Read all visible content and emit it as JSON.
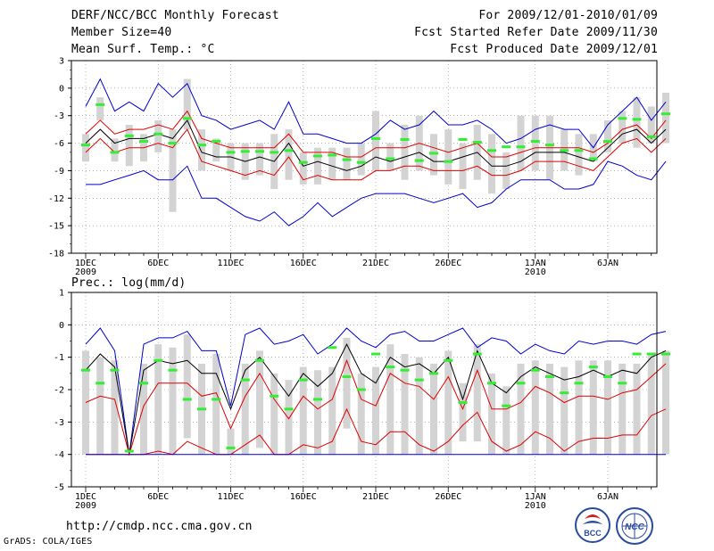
{
  "header": {
    "title": "DERF/NCC/BCC Monthly Forecast",
    "member_size": "Member Size=40",
    "variable": "Mean Surf. Temp.: °C",
    "period": "For 2009/12/01-2010/01/09",
    "started": "Fcst Started Refer Date 2009/11/30",
    "produced": "Fcst Produced Date 2009/12/01"
  },
  "footer": {
    "url": "http://cmdp.ncc.cma.gov.cn",
    "credit": "GrADS: COLA/IGES",
    "logo_left": "BCC",
    "logo_right": "NCC"
  },
  "colors": {
    "mean": "#000000",
    "spread": "#e00000",
    "extreme": "#0000cc",
    "box": "#d3d3d3",
    "median": "#33ee33",
    "grid": "#888888"
  },
  "chart_data": [
    {
      "type": "line",
      "title": "Mean Surf. Temp.: °C",
      "ylim": [
        -18,
        3
      ],
      "yticks": [
        3,
        0,
        -3,
        -6,
        -9,
        -12,
        -15,
        -18
      ],
      "xlim": [
        0,
        39.5
      ],
      "xticks": [
        {
          "day": 0,
          "label": "1DEC",
          "sub": "2009"
        },
        {
          "day": 5,
          "label": "6DEC",
          "sub": ""
        },
        {
          "day": 10,
          "label": "11DEC",
          "sub": ""
        },
        {
          "day": 15,
          "label": "16DEC",
          "sub": ""
        },
        {
          "day": 20,
          "label": "21DEC",
          "sub": ""
        },
        {
          "day": 25,
          "label": "26DEC",
          "sub": ""
        },
        {
          "day": 31,
          "label": "1JAN",
          "sub": "2010"
        },
        {
          "day": 36,
          "label": "6JAN",
          "sub": ""
        }
      ],
      "series": [
        {
          "name": "max",
          "color": "#0000cc",
          "values": [
            -2,
            1,
            -2.5,
            -1.5,
            -2.5,
            0.5,
            -1,
            0.5,
            -3,
            -3.5,
            -4.5,
            -4,
            -3.5,
            -4.5,
            -1.5,
            -5,
            -5,
            -5.5,
            -6,
            -6,
            -5,
            -3.5,
            -4.5,
            -4,
            -2.5,
            -4,
            -4,
            -3.5,
            -4.5,
            -6,
            -5.5,
            -4.5,
            -4,
            -4.5,
            -4.5,
            -6.5,
            -4,
            -2.5,
            -1,
            -3.5,
            -1.5
          ]
        },
        {
          "name": "upper",
          "color": "#e00000",
          "values": [
            -5,
            -3.5,
            -5,
            -4.5,
            -4.5,
            -4,
            -4.5,
            -2.5,
            -5.5,
            -6,
            -6.5,
            -6.5,
            -6.5,
            -6.5,
            -5,
            -7,
            -7,
            -7,
            -7.5,
            -7.5,
            -6.5,
            -6.5,
            -6.5,
            -6,
            -6.5,
            -7,
            -6.5,
            -6,
            -7.5,
            -7.5,
            -7,
            -6.5,
            -6.5,
            -6.5,
            -6.5,
            -7,
            -6,
            -4.5,
            -4,
            -5.5,
            -3.5
          ]
        },
        {
          "name": "mean",
          "color": "#000000",
          "values": [
            -6,
            -4.5,
            -6,
            -5.5,
            -5.5,
            -5,
            -5.5,
            -3.5,
            -7,
            -7.5,
            -7.5,
            -8,
            -7.5,
            -8,
            -6,
            -8.5,
            -8,
            -8.5,
            -9,
            -8.5,
            -7.5,
            -8,
            -7.5,
            -7,
            -8,
            -8,
            -7.5,
            -7,
            -8.5,
            -8.5,
            -8,
            -7,
            -7,
            -7,
            -7.5,
            -8,
            -6.5,
            -5,
            -4.5,
            -6,
            -4.5
          ]
        },
        {
          "name": "lower",
          "color": "#e00000",
          "values": [
            -7,
            -5.5,
            -7,
            -6.5,
            -6.5,
            -6,
            -6.5,
            -4.5,
            -8,
            -8.5,
            -9,
            -9.5,
            -9,
            -9.5,
            -7.5,
            -10,
            -9.5,
            -10,
            -10,
            -10,
            -9,
            -9,
            -8.5,
            -8.5,
            -9,
            -9,
            -9,
            -8.5,
            -9.5,
            -9.5,
            -9,
            -8,
            -8,
            -8,
            -8.5,
            -9,
            -7.5,
            -6,
            -5.5,
            -7,
            -5.5
          ]
        },
        {
          "name": "min",
          "color": "#0000cc",
          "values": [
            -10.5,
            -10.5,
            -10,
            -9.5,
            -9,
            -10,
            -10,
            -8.5,
            -12,
            -12,
            -13,
            -14,
            -14.5,
            -13.5,
            -15,
            -14,
            -12.5,
            -14,
            -13,
            -12,
            -11.5,
            -11.5,
            -11.5,
            -12,
            -12.5,
            -12,
            -11.5,
            -13,
            -12.5,
            -11,
            -10,
            -10,
            -10,
            -11,
            -11,
            -10.5,
            -8,
            -8.5,
            -9.5,
            -10,
            -8
          ]
        }
      ],
      "boxes": [
        [
          -8,
          -5
        ],
        [
          -3.5,
          -1
        ],
        [
          -8,
          -5.5
        ],
        [
          -8.5,
          -4
        ],
        [
          -8,
          -5
        ],
        [
          -7,
          -3.5
        ],
        [
          -13.5,
          -4.5
        ],
        [
          -4.5,
          1
        ],
        [
          -9,
          -4.5
        ],
        [
          -8,
          -5.5
        ],
        [
          -9,
          -6
        ],
        [
          -10,
          -6
        ],
        [
          -9.5,
          -6
        ],
        [
          -11,
          -5
        ],
        [
          -10,
          -4.5
        ],
        [
          -10.5,
          -7
        ],
        [
          -10.5,
          -6.5
        ],
        [
          -10,
          -6.5
        ],
        [
          -10,
          -6.5
        ],
        [
          -9.5,
          -6
        ],
        [
          -9,
          -2.5
        ],
        [
          -9,
          -6
        ],
        [
          -10,
          -4
        ],
        [
          -9,
          -3
        ],
        [
          -9.5,
          -5
        ],
        [
          -10.5,
          -4.5
        ],
        [
          -11,
          -6
        ],
        [
          -10,
          -4
        ],
        [
          -11.5,
          -5
        ],
        [
          -11,
          -7
        ],
        [
          -9,
          -3
        ],
        [
          -9,
          -3
        ],
        [
          -10,
          -3
        ],
        [
          -9,
          -4.5
        ],
        [
          -9.5,
          -5
        ],
        [
          -8,
          -5
        ],
        [
          -7,
          -3.5
        ],
        [
          -6,
          -2.5
        ],
        [
          -6.5,
          -1
        ],
        [
          -6,
          -2
        ],
        [
          -6,
          -0.5
        ]
      ],
      "medians": [
        -6.2,
        -1.8,
        -7,
        -5.2,
        -5.8,
        -5,
        -6,
        -3.3,
        -6.2,
        -5.8,
        -7,
        -6.9,
        -6.9,
        -7,
        -6.8,
        -8.1,
        -7.4,
        -7.3,
        -7.8,
        -8.1,
        -5.5,
        -7.7,
        -5.6,
        -7.9,
        -7.1,
        -8,
        -5.6,
        -5.9,
        -6.8,
        -6.4,
        -6.4,
        -5.8,
        -6.2,
        -6.8,
        -6.8,
        -7.7,
        -5.8,
        -3.3,
        -3.4,
        -5.3,
        -2.8
      ]
    },
    {
      "type": "line",
      "title": "Prec.: log(mm/d)",
      "ylim": [
        -5,
        1
      ],
      "yticks": [
        1,
        0,
        -1,
        -2,
        -3,
        -4,
        -5
      ],
      "xlim": [
        0,
        39.5
      ],
      "xticks": [
        {
          "day": 0,
          "label": "1DEC",
          "sub": "2009"
        },
        {
          "day": 5,
          "label": "6DEC",
          "sub": ""
        },
        {
          "day": 10,
          "label": "11DEC",
          "sub": ""
        },
        {
          "day": 15,
          "label": "16DEC",
          "sub": ""
        },
        {
          "day": 20,
          "label": "21DEC",
          "sub": ""
        },
        {
          "day": 25,
          "label": "26DEC",
          "sub": ""
        },
        {
          "day": 31,
          "label": "1JAN",
          "sub": "2010"
        },
        {
          "day": 36,
          "label": "6JAN",
          "sub": ""
        }
      ],
      "series": [
        {
          "name": "max",
          "color": "#0000cc",
          "values": [
            -0.6,
            -0.1,
            -0.8,
            -4,
            -0.6,
            -0.4,
            -0.4,
            -0.2,
            -0.8,
            -0.8,
            -2.5,
            -0.3,
            -0.1,
            -0.6,
            -0.5,
            -0.3,
            -0.9,
            -0.6,
            -0.1,
            -0.5,
            -0.7,
            -0.3,
            -0.2,
            -0.5,
            -0.5,
            -0.3,
            -0.1,
            -0.7,
            -0.4,
            -0.5,
            -0.9,
            -0.6,
            -0.8,
            -0.9,
            -0.5,
            -0.6,
            -0.5,
            -0.5,
            -0.6,
            -0.3,
            -0.2
          ]
        },
        {
          "name": "mean",
          "color": "#000000",
          "values": [
            -1.4,
            -0.9,
            -1.3,
            -4,
            -1.4,
            -1.1,
            -1.2,
            -1.1,
            -1.5,
            -1.5,
            -2.6,
            -1.4,
            -1,
            -1.6,
            -2.2,
            -1.5,
            -1.9,
            -1.5,
            -0.6,
            -1.5,
            -1.8,
            -1,
            -1.3,
            -1.2,
            -1.5,
            -1,
            -2.3,
            -0.8,
            -1.8,
            -2.1,
            -1.6,
            -1.3,
            -1.5,
            -1.7,
            -1.6,
            -1.4,
            -1.6,
            -1.4,
            -1.5,
            -1,
            -0.8
          ]
        },
        {
          "name": "upper",
          "color": "#e00000",
          "values": [
            -2.4,
            -2.2,
            -2.3,
            -4,
            -2.5,
            -1.8,
            -1.8,
            -1.8,
            -2.2,
            -2.1,
            -3.2,
            -2.2,
            -1.5,
            -2.3,
            -2.9,
            -2.2,
            -2.6,
            -2.3,
            -1.1,
            -2.3,
            -2.5,
            -1.5,
            -1.8,
            -1.9,
            -2.3,
            -1.6,
            -2.6,
            -1.4,
            -2.6,
            -2.6,
            -2.4,
            -1.9,
            -2.1,
            -2.4,
            -2.2,
            -2.2,
            -2.3,
            -2.1,
            -2,
            -1.6,
            -1.2
          ]
        },
        {
          "name": "lower",
          "color": "#e00000",
          "values": [
            -4,
            -4,
            -4,
            -4,
            -4,
            -3.9,
            -4,
            -3.6,
            -3.8,
            -4,
            -4,
            -3.7,
            -3.4,
            -4,
            -4,
            -3.7,
            -3.8,
            -3.6,
            -2.6,
            -3.6,
            -3.7,
            -3.3,
            -3.3,
            -3.7,
            -3.9,
            -3.6,
            -3.1,
            -2.7,
            -3.6,
            -3.9,
            -3.7,
            -3.3,
            -3.5,
            -3.9,
            -3.6,
            -3.5,
            -3.5,
            -3.4,
            -3.4,
            -2.8,
            -2.6
          ]
        },
        {
          "name": "min",
          "color": "#0000cc",
          "values": [
            -4,
            -4,
            -4,
            -4,
            -4,
            -4,
            -4,
            -4,
            -4,
            -4,
            -4,
            -4,
            -4,
            -4,
            -4,
            -4,
            -4,
            -4,
            -4,
            -4,
            -4,
            -4,
            -4,
            -4,
            -4,
            -4,
            -4,
            -4,
            -4,
            -4,
            -4,
            -4,
            -4,
            -4,
            -4,
            -4,
            -4,
            -4,
            -4,
            -4,
            -4
          ]
        }
      ],
      "boxes": [
        [
          -4,
          -0.8
        ],
        [
          -4,
          -1
        ],
        [
          -4,
          -1.1
        ],
        [
          -4,
          -4
        ],
        [
          -4,
          -1.2
        ],
        [
          -4,
          -0.6
        ],
        [
          -4,
          -0.7
        ],
        [
          -3.5,
          -0.3
        ],
        [
          -4,
          -1.2
        ],
        [
          -4,
          -0.9
        ],
        [
          -4,
          -3.2
        ],
        [
          -4,
          -1.2
        ],
        [
          -3.8,
          -0.8
        ],
        [
          -4,
          -1.5
        ],
        [
          -4,
          -1.7
        ],
        [
          -4,
          -1.3
        ],
        [
          -4,
          -1.4
        ],
        [
          -4,
          -1.3
        ],
        [
          -3.2,
          -0.4
        ],
        [
          -4,
          -1.5
        ],
        [
          -4,
          -1.3
        ],
        [
          -4,
          -0.6
        ],
        [
          -4,
          -0.9
        ],
        [
          -4,
          -1
        ],
        [
          -4,
          -1.2
        ],
        [
          -4,
          -0.8
        ],
        [
          -3.6,
          -1.8
        ],
        [
          -3.6,
          -0.6
        ],
        [
          -4,
          -1.5
        ],
        [
          -4,
          -1.9
        ],
        [
          -4,
          -1.2
        ],
        [
          -4,
          -1.1
        ],
        [
          -4,
          -1.2
        ],
        [
          -4,
          -1.3
        ],
        [
          -4,
          -1.1
        ],
        [
          -4,
          -1.1
        ],
        [
          -4,
          -1.1
        ],
        [
          -4,
          -1.2
        ],
        [
          -4,
          -1.2
        ],
        [
          -4,
          -0.9
        ],
        [
          -4,
          -0.8
        ]
      ],
      "medians": [
        -1.4,
        -1.8,
        -1.4,
        -3.9,
        -1.8,
        -1.1,
        -1.4,
        -2.3,
        -2.6,
        -2.3,
        -3.8,
        -1.7,
        -1.1,
        -2.2,
        -2.6,
        -1.7,
        -2.3,
        -0.7,
        -1.6,
        -2,
        -0.9,
        -1.3,
        -1.4,
        -1.7,
        -1.5,
        -1.1,
        -2.4,
        -0.9,
        -1.8,
        -2.5,
        -1.8,
        -1.4,
        -1.6,
        -2.1,
        -1.8,
        -1.3,
        -1.6,
        -1.8,
        -0.9,
        -0.9,
        -0.9
      ]
    }
  ]
}
